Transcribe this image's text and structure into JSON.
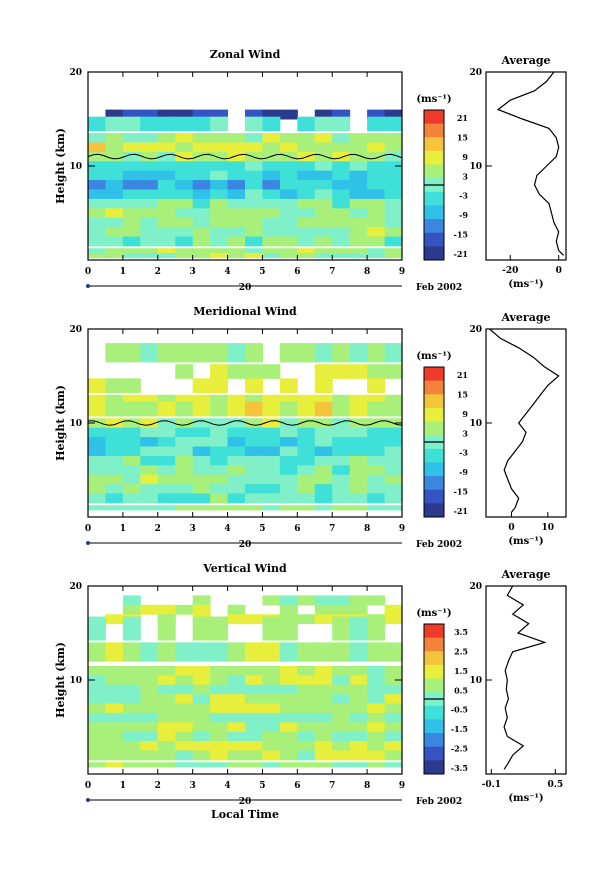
{
  "palette": [
    "#2b3a8c",
    "#3553c2",
    "#3a86e0",
    "#2fc1e8",
    "#3fe0d8",
    "#7ff0c8",
    "#a8f07a",
    "#e8ee3c",
    "#f4c43a",
    "#f3823a",
    "#ee3a2a"
  ],
  "chart_data": [
    {
      "type": "heatmap",
      "title": "Zonal Wind",
      "ylabel": "Height (km)",
      "xlim": [
        0,
        9
      ],
      "ylim": [
        0,
        20
      ],
      "xticks": [
        "0",
        "1",
        "2",
        "3",
        "4",
        "5",
        "6",
        "7",
        "8",
        "9"
      ],
      "yticks": [
        "10",
        "20"
      ],
      "date_label": "Feb 2002",
      "day_label": "20",
      "colorbar": {
        "unit": "(ms⁻¹)",
        "labels": [
          "21",
          "15",
          "9",
          "3",
          "-3",
          "-9",
          "-15",
          "-21"
        ]
      },
      "rows": [
        {
          "y": 15.5,
          "v": -18
        },
        {
          "y": 14.5,
          "v": -3
        },
        {
          "y": 13.0,
          "v": 4
        },
        {
          "y": 12.0,
          "v": 6
        },
        {
          "y": 11.0,
          "v": 5
        },
        {
          "y": 10.0,
          "v": -2
        },
        {
          "y": 9.0,
          "v": -5
        },
        {
          "y": 8.0,
          "v": -7
        },
        {
          "y": 7.0,
          "v": -4
        },
        {
          "y": 6.0,
          "v": 1
        },
        {
          "y": 5.0,
          "v": 3
        },
        {
          "y": 4.0,
          "v": 2
        },
        {
          "y": 3.0,
          "v": 3
        },
        {
          "y": 2.0,
          "v": 1
        },
        {
          "y": 1.0,
          "v": 4
        },
        {
          "y": 0.5,
          "v": 3
        }
      ],
      "average": {
        "label": "Average",
        "xlabel": "(ms⁻¹)",
        "xlim": [
          -30,
          3
        ],
        "xticks": [
          "-20",
          "0"
        ],
        "profile": [
          [
            2,
            0.5
          ],
          [
            0,
            1
          ],
          [
            -1,
            2
          ],
          [
            0,
            3
          ],
          [
            -2,
            4
          ],
          [
            -3,
            5
          ],
          [
            -4,
            6
          ],
          [
            -8,
            7
          ],
          [
            -10,
            8
          ],
          [
            -9,
            9
          ],
          [
            -5,
            10
          ],
          [
            -1,
            11
          ],
          [
            0,
            12
          ],
          [
            -1,
            13
          ],
          [
            -4,
            14
          ],
          [
            -15,
            15
          ],
          [
            -25,
            16
          ],
          [
            -20,
            17
          ],
          [
            -10,
            18
          ],
          [
            -5,
            19
          ],
          [
            -2,
            20
          ]
        ]
      }
    },
    {
      "type": "heatmap",
      "title": "Meridional Wind",
      "ylabel": "Height (km)",
      "xlim": [
        0,
        9
      ],
      "ylim": [
        0,
        20
      ],
      "xticks": [
        "0",
        "1",
        "2",
        "3",
        "4",
        "5",
        "6",
        "7",
        "8",
        "9"
      ],
      "yticks": [
        "10",
        "20"
      ],
      "date_label": "Feb 2002",
      "day_label": "20",
      "colorbar": {
        "unit": "(ms⁻¹)",
        "labels": [
          "21",
          "15",
          "9",
          "3",
          "-3",
          "-9",
          "-15",
          "-21"
        ]
      },
      "rows": [
        {
          "y": 17.5,
          "v": 2
        },
        {
          "y": 15.5,
          "v": 4
        },
        {
          "y": 14.0,
          "v": 5
        },
        {
          "y": 12.5,
          "v": 6
        },
        {
          "y": 11.5,
          "v": 7
        },
        {
          "y": 10.0,
          "v": 3
        },
        {
          "y": 9.0,
          "v": -2
        },
        {
          "y": 8.0,
          "v": -4
        },
        {
          "y": 7.0,
          "v": -3
        },
        {
          "y": 6.0,
          "v": -1
        },
        {
          "y": 5.0,
          "v": 1
        },
        {
          "y": 4.0,
          "v": 3
        },
        {
          "y": 3.0,
          "v": 1
        },
        {
          "y": 2.0,
          "v": -1
        },
        {
          "y": 1.0,
          "v": 2
        }
      ],
      "average": {
        "label": "Average",
        "xlabel": "(ms⁻¹)",
        "xlim": [
          -7,
          15
        ],
        "xticks": [
          "0",
          "10"
        ],
        "profile": [
          [
            0,
            0.5
          ],
          [
            1,
            1
          ],
          [
            2,
            2
          ],
          [
            0,
            3
          ],
          [
            -1,
            4
          ],
          [
            -2,
            5
          ],
          [
            -1,
            6
          ],
          [
            1,
            7
          ],
          [
            3,
            8
          ],
          [
            4,
            9
          ],
          [
            2,
            10
          ],
          [
            4,
            11
          ],
          [
            6,
            12
          ],
          [
            8,
            13
          ],
          [
            10,
            14
          ],
          [
            13,
            15
          ],
          [
            9,
            16
          ],
          [
            6,
            17
          ],
          [
            2,
            18
          ],
          [
            -3,
            19
          ],
          [
            -6,
            20
          ]
        ]
      }
    },
    {
      "type": "heatmap",
      "title": "Vertical Wind",
      "ylabel": "Height (km)",
      "xlabel": "Local Time",
      "xlim": [
        0,
        9
      ],
      "ylim": [
        0,
        20
      ],
      "xticks": [
        "0",
        "1",
        "2",
        "3",
        "4",
        "5",
        "6",
        "7",
        "8",
        "9"
      ],
      "yticks": [
        "10",
        "20"
      ],
      "date_label": "Feb 2002",
      "day_label": "20",
      "colorbar": {
        "unit": "(ms⁻¹)",
        "labels": [
          "3.5",
          "2.5",
          "1.5",
          "0.5",
          "-0.5",
          "-1.5",
          "-2.5",
          "-3.5"
        ]
      },
      "rows": [
        {
          "y": 18.5,
          "v": 0.3
        },
        {
          "y": 17.5,
          "v": 0.6
        },
        {
          "y": 16.5,
          "v": 0.8
        },
        {
          "y": 15.5,
          "v": 0.2
        },
        {
          "y": 13.0,
          "v": 0.5
        },
        {
          "y": 11.0,
          "v": 0.9
        },
        {
          "y": 10.0,
          "v": 0.7
        },
        {
          "y": 9.0,
          "v": 0.4
        },
        {
          "y": 8.0,
          "v": 0.6
        },
        {
          "y": 7.0,
          "v": 0.8
        },
        {
          "y": 6.0,
          "v": 0.3
        },
        {
          "y": 5.0,
          "v": 0.7
        },
        {
          "y": 4.0,
          "v": 0.5
        },
        {
          "y": 3.0,
          "v": 1.0
        },
        {
          "y": 2.0,
          "v": 0.8
        },
        {
          "y": 1.0,
          "v": 0.6
        }
      ],
      "average": {
        "label": "Average",
        "xlabel": "(ms⁻¹)",
        "xlim": [
          -0.15,
          0.6
        ],
        "xticks": [
          "-0.1",
          "0.5"
        ],
        "profile": [
          [
            0.02,
            0.5
          ],
          [
            0.05,
            1
          ],
          [
            0.1,
            2
          ],
          [
            0.2,
            3
          ],
          [
            0.05,
            4
          ],
          [
            0.02,
            5
          ],
          [
            0.05,
            6
          ],
          [
            0.03,
            7
          ],
          [
            0.06,
            8
          ],
          [
            0.04,
            9
          ],
          [
            0.05,
            10
          ],
          [
            0.03,
            11
          ],
          [
            0.06,
            12
          ],
          [
            0.1,
            13
          ],
          [
            0.4,
            14
          ],
          [
            0.15,
            15
          ],
          [
            0.25,
            16
          ],
          [
            0.1,
            17
          ],
          [
            0.2,
            18
          ],
          [
            0.05,
            19
          ],
          [
            0.1,
            20
          ]
        ]
      }
    }
  ]
}
